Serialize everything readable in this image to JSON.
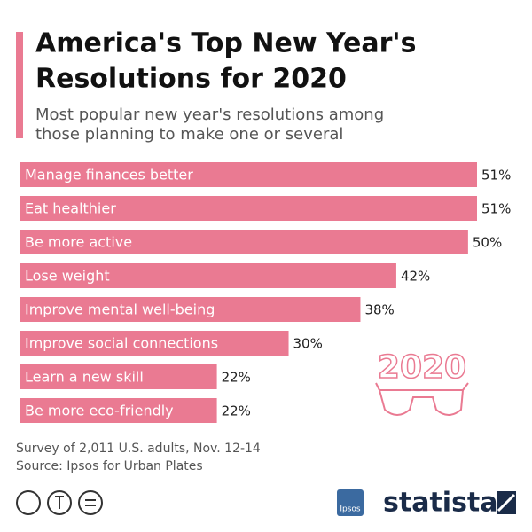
{
  "chart_data": {
    "type": "bar",
    "orientation": "horizontal",
    "title": [
      "America's Top New Year's",
      "Resolutions for 2020"
    ],
    "subtitle": [
      "Most popular new year's resolutions among",
      "those planning to make one or several"
    ],
    "categories": [
      "Manage finances better",
      "Eat healthier",
      "Be more active",
      "Lose weight",
      "Improve mental well-being",
      "Improve social connections",
      "Learn a new skill",
      "Be more eco-friendly"
    ],
    "values": [
      51,
      51,
      50,
      42,
      38,
      30,
      22,
      22
    ],
    "value_labels": [
      "51%",
      "51%",
      "50%",
      "42%",
      "38%",
      "30%",
      "22%",
      "22%"
    ],
    "color": "#ea7a92",
    "annotation": "2020",
    "note": "Survey of 2,011 U.S. adults, Nov. 12-14",
    "source": "Source: Ipsos for Urban Plates",
    "partner": "Ipsos",
    "brand": "statista"
  }
}
